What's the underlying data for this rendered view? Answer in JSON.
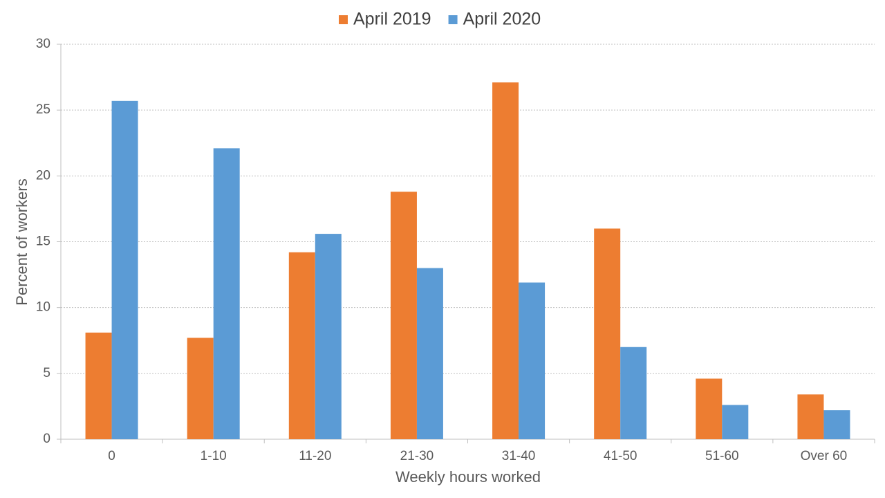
{
  "chart_data": {
    "type": "bar",
    "x_label": "Weekly hours worked",
    "y_label": "Percent of workers",
    "categories": [
      "0",
      "1-10",
      "11-20",
      "21-30",
      "31-40",
      "41-50",
      "51-60",
      "Over 60"
    ],
    "series": [
      {
        "name": "April 2019",
        "color": "#ed7d31",
        "values": [
          8.1,
          7.7,
          14.2,
          18.8,
          27.1,
          16.0,
          4.6,
          3.4
        ]
      },
      {
        "name": "April 2020",
        "color": "#5b9bd5",
        "values": [
          25.7,
          22.1,
          15.6,
          13.0,
          11.9,
          7.0,
          2.6,
          2.2
        ]
      }
    ],
    "ylim": [
      0,
      30
    ],
    "yticks": [
      0,
      5,
      10,
      15,
      20,
      25,
      30
    ],
    "grid": true,
    "legend": "top"
  }
}
